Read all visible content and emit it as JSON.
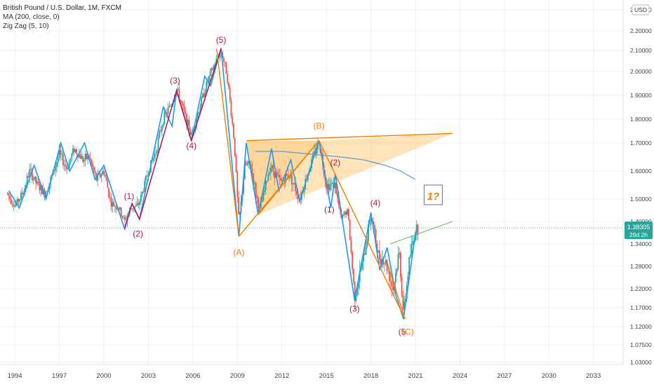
{
  "legend": {
    "title": "British Pound / U.S. Dollar, 1M, FXCM",
    "ma": "MA (200, close, 0)",
    "zigzag": "Zig Zag (5, 10)"
  },
  "colors": {
    "up": "#26a69a",
    "down": "#ef5350",
    "zigzag": "#2196f3",
    "ma": "#5b9bd5",
    "wave": "#ad1457",
    "orange": "#f57c00",
    "triangle_fill": "#ffcc80",
    "price_badge": "#26a69a",
    "grid": "#eeeeee",
    "green_line": "#66bb6a"
  },
  "chart_data": {
    "type": "line",
    "symbol": "GBPUSD",
    "currency": "USD",
    "xlim": [
      1993.0,
      2035.0
    ],
    "ylim": [
      1.0,
      2.32
    ],
    "x_ticks": [
      "1994",
      "1997",
      "2000",
      "2003",
      "2006",
      "2009",
      "2012",
      "2015",
      "2018",
      "2021",
      "2024",
      "2027",
      "2030",
      "2033"
    ],
    "y_ticks": [
      "1.03000",
      "1.07500",
      "1.12000",
      "1.17000",
      "1.22000",
      "1.28000",
      "1.34000",
      "1.40000",
      "1.50000",
      "1.60000",
      "1.70000",
      "1.80000",
      "1.90000",
      "2.00000",
      "2.10000",
      "2.20000",
      "2.30000"
    ],
    "last_price": {
      "value": "1.38305",
      "countdown": "29d 2h",
      "y": 1.383
    },
    "price_path": [
      [
        1993.5,
        1.52
      ],
      [
        1994.0,
        1.47
      ],
      [
        1994.6,
        1.53
      ],
      [
        1995.0,
        1.6
      ],
      [
        1995.5,
        1.55
      ],
      [
        1996.0,
        1.52
      ],
      [
        1996.5,
        1.58
      ],
      [
        1997.0,
        1.66
      ],
      [
        1997.5,
        1.61
      ],
      [
        1998.0,
        1.68
      ],
      [
        1998.6,
        1.64
      ],
      [
        1999.0,
        1.65
      ],
      [
        1999.5,
        1.57
      ],
      [
        2000.0,
        1.6
      ],
      [
        2000.5,
        1.48
      ],
      [
        2001.0,
        1.46
      ],
      [
        2001.4,
        1.4
      ],
      [
        2001.8,
        1.46
      ],
      [
        2002.3,
        1.47
      ],
      [
        2003.0,
        1.6
      ],
      [
        2003.5,
        1.67
      ],
      [
        2004.0,
        1.8
      ],
      [
        2004.6,
        1.87
      ],
      [
        2004.9,
        1.93
      ],
      [
        2005.4,
        1.83
      ],
      [
        2005.9,
        1.73
      ],
      [
        2006.5,
        1.86
      ],
      [
        2007.0,
        1.96
      ],
      [
        2007.5,
        2.04
      ],
      [
        2007.9,
        2.1
      ],
      [
        2008.3,
        1.99
      ],
      [
        2008.8,
        1.7
      ],
      [
        2009.1,
        1.4
      ],
      [
        2009.5,
        1.62
      ],
      [
        2009.9,
        1.62
      ],
      [
        2010.5,
        1.45
      ],
      [
        2011.2,
        1.62
      ],
      [
        2011.9,
        1.56
      ],
      [
        2012.5,
        1.59
      ],
      [
        2013.2,
        1.5
      ],
      [
        2013.8,
        1.6
      ],
      [
        2014.5,
        1.71
      ],
      [
        2015.0,
        1.55
      ],
      [
        2015.6,
        1.55
      ],
      [
        2016.0,
        1.41
      ],
      [
        2016.4,
        1.45
      ],
      [
        2016.9,
        1.2
      ],
      [
        2017.5,
        1.3
      ],
      [
        2018.0,
        1.42
      ],
      [
        2018.5,
        1.31
      ],
      [
        2019.0,
        1.29
      ],
      [
        2019.5,
        1.22
      ],
      [
        2019.9,
        1.32
      ],
      [
        2020.2,
        1.15
      ],
      [
        2020.6,
        1.3
      ],
      [
        2021.0,
        1.38
      ],
      [
        2021.2,
        1.38
      ]
    ],
    "zigzag": [
      [
        1993.6,
        1.53
      ],
      [
        1994.3,
        1.46
      ],
      [
        1995.3,
        1.62
      ],
      [
        1996.1,
        1.5
      ],
      [
        1997.1,
        1.7
      ],
      [
        1997.7,
        1.6
      ],
      [
        1998.7,
        1.7
      ],
      [
        1999.4,
        1.57
      ],
      [
        2000.0,
        1.62
      ],
      [
        2001.4,
        1.38
      ],
      [
        2001.9,
        1.48
      ],
      [
        2002.4,
        1.41
      ],
      [
        2004.0,
        1.85
      ],
      [
        2004.6,
        1.77
      ],
      [
        2004.9,
        1.92
      ],
      [
        2005.9,
        1.71
      ],
      [
        2006.8,
        1.98
      ],
      [
        2007.2,
        1.94
      ],
      [
        2007.9,
        2.11
      ],
      [
        2009.1,
        1.36
      ],
      [
        2009.6,
        1.7
      ],
      [
        2010.4,
        1.43
      ],
      [
        2011.3,
        1.68
      ],
      [
        2011.8,
        1.53
      ],
      [
        2012.6,
        1.64
      ],
      [
        2013.2,
        1.49
      ],
      [
        2014.5,
        1.71
      ],
      [
        2015.3,
        1.46
      ],
      [
        2015.6,
        1.59
      ],
      [
        2016.9,
        1.19
      ],
      [
        2018.0,
        1.44
      ],
      [
        2018.6,
        1.27
      ],
      [
        2019.1,
        1.33
      ],
      [
        2019.7,
        1.2
      ],
      [
        2020.2,
        1.14
      ],
      [
        2020.9,
        1.34
      ],
      [
        2021.1,
        1.38
      ]
    ],
    "ma200": [
      [
        2010.2,
        1.67
      ],
      [
        2012.0,
        1.67
      ],
      [
        2014.0,
        1.66
      ],
      [
        2016.0,
        1.65
      ],
      [
        2017.5,
        1.64
      ],
      [
        2019.0,
        1.62
      ],
      [
        2020.0,
        1.6
      ],
      [
        2021.0,
        1.57
      ]
    ],
    "wave_lines": [
      [
        [
          2001.4,
          1.38
        ],
        [
          2001.9,
          1.48
        ],
        [
          2002.4,
          1.41
        ],
        [
          2004.9,
          1.92
        ],
        [
          2005.9,
          1.71
        ],
        [
          2007.9,
          2.11
        ]
      ]
    ],
    "orange_lines": [
      [
        [
          2007.6,
          2.11
        ],
        [
          2009.1,
          1.36
        ]
      ],
      [
        [
          2009.1,
          1.36
        ],
        [
          2014.5,
          1.71
        ],
        [
          2020.3,
          1.14
        ]
      ],
      [
        [
          2019.1,
          1.29
        ],
        [
          2020.3,
          1.14
        ]
      ]
    ],
    "triangle": {
      "top": [
        [
          2009.6,
          1.71
        ],
        [
          2023.5,
          1.74
        ]
      ],
      "bottom": [
        [
          2010.4,
          1.43
        ],
        [
          2014.5,
          1.71
        ]
      ],
      "fill": [
        [
          2009.6,
          1.71
        ],
        [
          2014.5,
          1.71
        ],
        [
          2023.5,
          1.74
        ],
        [
          2014.5,
          1.71
        ],
        [
          2010.4,
          1.43
        ],
        [
          2009.6,
          1.7
        ]
      ]
    },
    "green_line": [
      [
        2019.3,
        1.34
      ],
      [
        2023.5,
        1.4
      ]
    ],
    "labels": [
      {
        "text": "(1)",
        "x": 2001.7,
        "y": 1.5,
        "color": "wave"
      },
      {
        "text": "(2)",
        "x": 2002.3,
        "y": 1.36,
        "color": "wave"
      },
      {
        "text": "(3)",
        "x": 2004.8,
        "y": 1.95,
        "color": "wave"
      },
      {
        "text": "(4)",
        "x": 2005.9,
        "y": 1.68,
        "color": "wave"
      },
      {
        "text": "(5)",
        "x": 2007.9,
        "y": 2.14,
        "color": "wave"
      },
      {
        "text": "(A)",
        "x": 2009.1,
        "y": 1.31,
        "color": "orange"
      },
      {
        "text": "(B)",
        "x": 2014.5,
        "y": 1.76,
        "color": "orange"
      },
      {
        "text": "(1)",
        "x": 2015.2,
        "y": 1.44,
        "color": "wave"
      },
      {
        "text": "(2)",
        "x": 2015.6,
        "y": 1.62,
        "color": "wave"
      },
      {
        "text": "(3)",
        "x": 2016.9,
        "y": 1.16,
        "color": "wave"
      },
      {
        "text": "(4)",
        "x": 2018.3,
        "y": 1.47,
        "color": "wave"
      },
      {
        "text": "(5",
        "x": 2020.1,
        "y": 1.1,
        "color": "wave"
      },
      {
        "text": "(C)",
        "x": 2020.5,
        "y": 1.1,
        "color": "orange"
      }
    ],
    "annotation_box": {
      "text": "1?",
      "x": 2022.2,
      "y": 1.51
    }
  }
}
